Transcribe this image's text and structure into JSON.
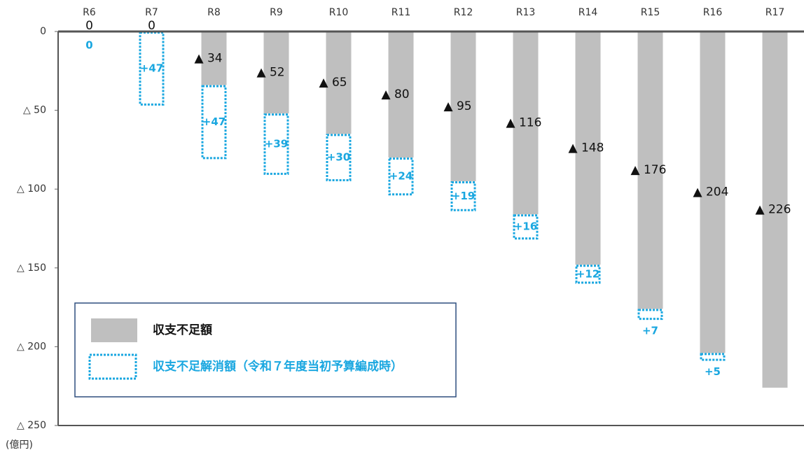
{
  "chart_data": {
    "type": "bar",
    "categories": [
      "R6",
      "R7",
      "R8",
      "R9",
      "R10",
      "R11",
      "R12",
      "R13",
      "R14",
      "R15",
      "R16",
      "R17"
    ],
    "series": [
      {
        "name": "収支不足額",
        "color": "#bfbfbf",
        "values": [
          0,
          0,
          -34,
          -52,
          -65,
          -80,
          -95,
          -116,
          -148,
          -176,
          -204,
          -226
        ],
        "value_labels": [
          "0",
          "0",
          "▲ 34",
          "▲ 52",
          "▲ 65",
          "▲ 80",
          "▲ 95",
          "▲ 116",
          "▲ 148",
          "▲ 176",
          "▲ 204",
          "▲ 226"
        ]
      },
      {
        "name": "収支不足解消額（令和７年度当初予算編成時）",
        "color": "#1aa7e0",
        "values": [
          0,
          47,
          47,
          39,
          30,
          24,
          19,
          16,
          12,
          7,
          5,
          null
        ],
        "value_labels": [
          "0",
          "+47",
          "+47",
          "+39",
          "+30",
          "+24",
          "+19",
          "+16",
          "+12",
          "+7",
          "+5",
          null
        ]
      }
    ],
    "ylim": [
      -250,
      0
    ],
    "yticks": [
      0,
      {
        "value": -50,
        "label": "△ 50"
      },
      {
        "value": -100,
        "label": "△ 100"
      },
      {
        "value": -150,
        "label": "△ 150"
      },
      {
        "value": -200,
        "label": "△ 200"
      },
      {
        "value": -250,
        "label": "△ 250"
      }
    ],
    "unit": "(億円)"
  }
}
